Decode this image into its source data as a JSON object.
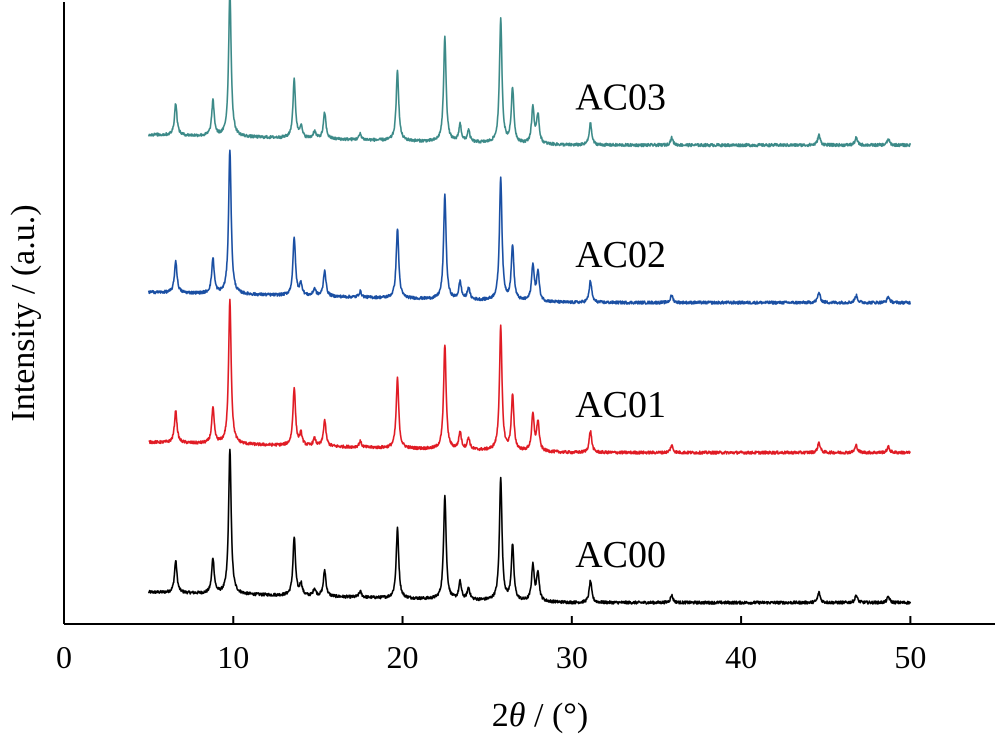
{
  "chart_data": {
    "type": "line",
    "xlabel_prefix": "2",
    "xlabel_symbol": "θ",
    "xlabel_suffix": " / (°)",
    "ylabel": "Intensity / (a.u.)",
    "xlim": [
      0,
      55
    ],
    "x_ticks": [
      0,
      10,
      20,
      30,
      40,
      50
    ],
    "y_ticks": [],
    "grid": false,
    "legend": "inline labels at right of each curve",
    "x_range": [
      5,
      50
    ],
    "peaks_2theta": [
      [
        6.6,
        0.22
      ],
      [
        8.8,
        0.24
      ],
      [
        9.8,
        1.0
      ],
      [
        13.6,
        0.4
      ],
      [
        14.0,
        0.08
      ],
      [
        14.8,
        0.05
      ],
      [
        15.4,
        0.18
      ],
      [
        17.5,
        0.04
      ],
      [
        19.7,
        0.48
      ],
      [
        22.5,
        0.72
      ],
      [
        23.4,
        0.12
      ],
      [
        23.9,
        0.08
      ],
      [
        25.8,
        0.85
      ],
      [
        26.5,
        0.38
      ],
      [
        27.7,
        0.25
      ],
      [
        28.0,
        0.2
      ],
      [
        31.1,
        0.15
      ],
      [
        35.9,
        0.05
      ],
      [
        44.6,
        0.07
      ],
      [
        46.8,
        0.05
      ],
      [
        48.7,
        0.04
      ]
    ],
    "series": [
      {
        "name": "AC00",
        "color": "#000000",
        "offset": 0.0,
        "baseline": [
          0.12,
          0.03
        ]
      },
      {
        "name": "AC01",
        "color": "#e01b24",
        "offset": 1.0,
        "baseline": [
          0.12,
          0.03
        ]
      },
      {
        "name": "AC02",
        "color": "#1a4fa3",
        "offset": 2.0,
        "baseline": [
          0.12,
          0.03
        ]
      },
      {
        "name": "AC03",
        "color": "#3c8a88",
        "offset": 3.05,
        "baseline": [
          0.12,
          0.03
        ]
      }
    ]
  }
}
